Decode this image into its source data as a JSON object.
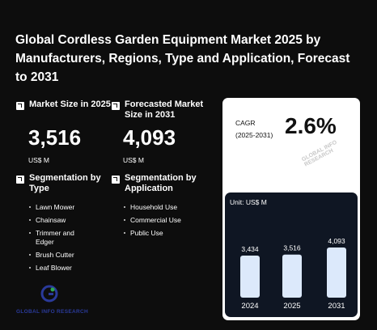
{
  "title": "Global Cordless Garden Equipment Market 2025 by Manufacturers, Regions, Type and Application, Forecast to 2031",
  "market_size": {
    "label": "Market Size in 2025",
    "value": "3,516",
    "unit": "US$ M"
  },
  "forecast_size": {
    "label": "Forecasted Market Size in 2031",
    "value": "4,093",
    "unit": "US$ M"
  },
  "segmentation_type": {
    "label": "Segmentation by Type",
    "items": [
      "Lawn Mower",
      "Chainsaw",
      "Trimmer and Edger",
      "Brush Cutter",
      "Leaf Blower"
    ]
  },
  "segmentation_application": {
    "label": "Segmentation by Application",
    "items": [
      "Household Use",
      "Commercial Use",
      "Public Use"
    ]
  },
  "cagr": {
    "label_line1": "CAGR",
    "label_line2": "(2025-2031)",
    "value": "2.6%"
  },
  "watermark": "GLOBAL INFO RESEARCH",
  "logo_text": "GLOBAL INFO RESEARCH",
  "colors": {
    "background": "#0d0d0d",
    "card": "#ffffff",
    "inner_panel": "#0f1623",
    "bar": "#dce9fb"
  },
  "chart_data": {
    "type": "bar",
    "unit_label": "Unit: US$ M",
    "categories": [
      "2024",
      "2025",
      "2031"
    ],
    "values": [
      3434,
      3516,
      4093
    ],
    "value_labels": [
      "3,434",
      "3,516",
      "4,093"
    ]
  }
}
